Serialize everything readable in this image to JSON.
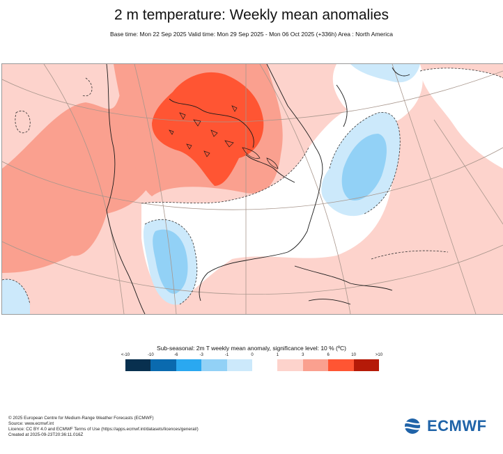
{
  "title": "2 m temperature: Weekly mean anomalies",
  "subtitle": "Base time: Mon 22 Sep 2025 Valid time: Mon 29 Sep 2025 - Mon 06 Oct 2025 (+336h) Area : North America",
  "legend": {
    "title": "Sub-seasonal: 2m T weekly mean anomaly, significance level: 10 % (ºC)",
    "tick_labels": [
      "<-10",
      "-10",
      "-6",
      "-3",
      "-1",
      "0",
      "1",
      "3",
      "6",
      "10",
      ">10"
    ],
    "colors": [
      "#08304f",
      "#0a6aaf",
      "#2aa8f0",
      "#92d1f6",
      "#cce9fb",
      "#ffffff",
      "#fdd3cc",
      "#faa08f",
      "#ff5533",
      "#b51a08",
      "#5b0a00"
    ]
  },
  "footer": {
    "lines": [
      "© 2025 European Centre for Medium-Range Weather Forecasts (ECMWF)",
      "Source: www.ecmwf.int",
      "Licence: CC BY 4.0 and ECMWF Terms of Use (https://apps.ecmwf.int/datasets/licences/general/)",
      "Created at 2025-09-23T20:36:11.016Z"
    ]
  },
  "logo": {
    "text": "ECMWF",
    "color": "#1f63a8"
  }
}
